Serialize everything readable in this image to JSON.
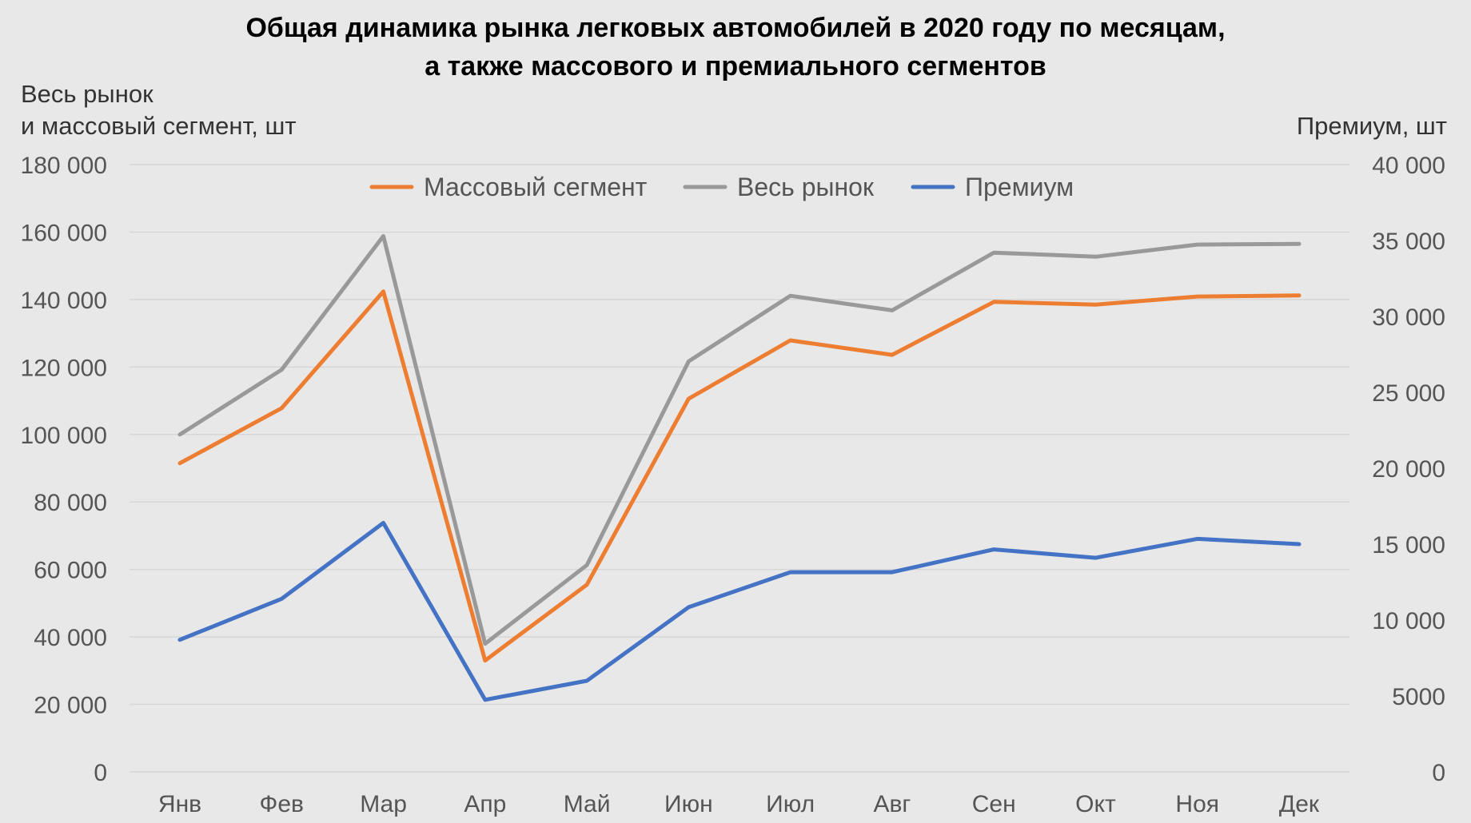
{
  "chart_data": {
    "type": "line",
    "title_line1": "Общая динамика рынка легковых автомобилей  в 2020 году по месяцам,",
    "title_line2": "а также массового и премиального сегментов",
    "ylabel_left_line1": "Весь рынок",
    "ylabel_left_line2": "и массовый сегмент, шт",
    "ylabel_right": "Премиум, шт",
    "categories": [
      "Янв",
      "Фев",
      "Мар",
      "Апр",
      "Май",
      "Июн",
      "Июл",
      "Авг",
      "Сен",
      "Окт",
      "Ноя",
      "Дек"
    ],
    "ylim_left": [
      0,
      180000
    ],
    "ylim_right": [
      0,
      40000
    ],
    "yticks_left": [
      "0",
      "20 000",
      "40 000",
      "60 000",
      "80 000",
      "100 000",
      "120 000",
      "140 000",
      "160 000",
      "180 000"
    ],
    "yticks_right": [
      "0",
      "5000",
      "10 000",
      "15 000",
      "20 000",
      "25 000",
      "30 000",
      "35 000",
      "40 000"
    ],
    "grid": true,
    "legend_position": "top-center",
    "series": [
      {
        "name": "Массовый сегмент",
        "axis": "left",
        "color": "#ed7d31",
        "values": [
          91500,
          107800,
          142400,
          33000,
          55500,
          110600,
          127900,
          123600,
          139300,
          138500,
          140900,
          141200
        ]
      },
      {
        "name": "Весь рынок",
        "axis": "left",
        "color": "#999999",
        "values": [
          100000,
          119200,
          158800,
          38000,
          61300,
          121700,
          141100,
          136800,
          153900,
          152700,
          156300,
          156500
        ]
      },
      {
        "name": "Премиум",
        "axis": "right",
        "color": "#4472c4",
        "values": [
          8700,
          11400,
          16400,
          4750,
          6000,
          10850,
          13150,
          13150,
          14650,
          14100,
          15350,
          15000
        ]
      }
    ]
  }
}
